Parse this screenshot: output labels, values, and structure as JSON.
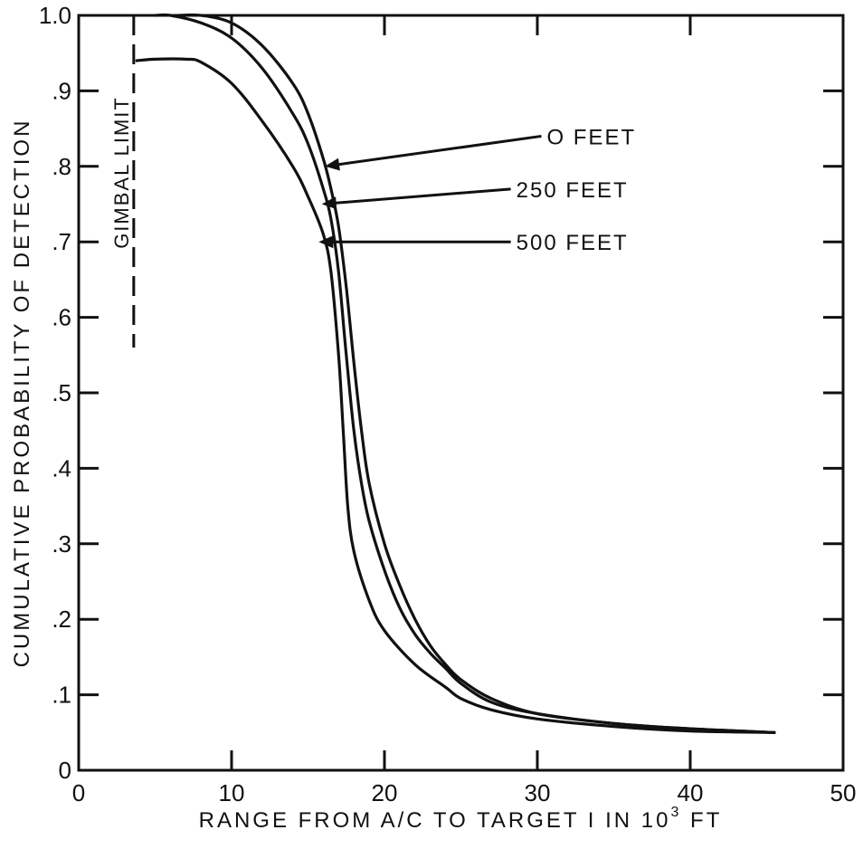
{
  "chart_data": {
    "type": "line",
    "title": "",
    "xlabel": "RANGE FROM A/C TO TARGET I IN 10",
    "xlabel_superscript": "3",
    "xlabel_suffix": " FT",
    "ylabel": "CUMULATIVE PROBABILITY OF DETECTION",
    "xlim": [
      0,
      50
    ],
    "ylim": [
      0,
      1.0
    ],
    "x_ticks": [
      0,
      10,
      20,
      30,
      40,
      50
    ],
    "x_tick_labels": [
      "0",
      "10",
      "20",
      "30",
      "40",
      "50"
    ],
    "y_ticks": [
      0,
      0.1,
      0.2,
      0.3,
      0.4,
      0.5,
      0.6,
      0.7,
      0.8,
      0.9,
      1.0
    ],
    "y_tick_labels": [
      "0",
      ".1",
      ".2",
      ".3",
      ".4",
      ".5",
      ".6",
      ".7",
      ".8",
      ".9",
      "1.0"
    ],
    "grid": false,
    "series": [
      {
        "name": "0 FEET",
        "x": [
          6.5,
          8,
          10,
          12,
          14,
          15,
          16,
          16.5,
          17,
          17.5,
          18,
          18.5,
          19,
          20,
          21,
          22,
          23,
          24,
          25,
          27,
          30,
          35,
          40,
          45.5
        ],
        "y": [
          1.0,
          1.0,
          0.99,
          0.96,
          0.91,
          0.87,
          0.81,
          0.77,
          0.72,
          0.64,
          0.54,
          0.45,
          0.38,
          0.3,
          0.245,
          0.2,
          0.165,
          0.14,
          0.12,
          0.095,
          0.075,
          0.062,
          0.055,
          0.05
        ]
      },
      {
        "name": "250 FEET",
        "x": [
          5,
          6,
          8,
          10,
          12,
          14,
          15,
          16,
          16.5,
          17,
          17.5,
          18,
          18.5,
          19,
          20,
          21,
          22,
          23,
          24,
          25,
          27,
          30,
          35,
          40,
          45.5
        ],
        "y": [
          1.0,
          1.0,
          0.99,
          0.97,
          0.93,
          0.87,
          0.83,
          0.77,
          0.73,
          0.66,
          0.55,
          0.45,
          0.38,
          0.33,
          0.265,
          0.215,
          0.18,
          0.155,
          0.135,
          0.115,
          0.09,
          0.075,
          0.062,
          0.055,
          0.05
        ]
      },
      {
        "name": "500 FEET",
        "x": [
          3.8,
          5,
          7,
          8,
          10,
          12,
          14,
          15,
          16,
          16.5,
          17,
          17.3,
          17.6,
          18,
          19,
          20,
          22,
          24,
          25,
          27,
          30,
          35,
          40,
          45.5
        ],
        "y": [
          0.94,
          0.942,
          0.942,
          0.938,
          0.91,
          0.86,
          0.8,
          0.76,
          0.71,
          0.66,
          0.55,
          0.45,
          0.35,
          0.29,
          0.225,
          0.185,
          0.14,
          0.11,
          0.095,
          0.08,
          0.068,
          0.058,
          0.052,
          0.05
        ]
      }
    ],
    "annotations": [
      {
        "text": "O FEET",
        "series": "0 FEET",
        "point_x": 16.1,
        "point_y": 0.8,
        "text_x": 30.5,
        "text_y": 0.84
      },
      {
        "text": "250 FEET",
        "series": "250 FEET",
        "point_x": 15.9,
        "point_y": 0.75,
        "text_x": 28.5,
        "text_y": 0.77
      },
      {
        "text": "500 FEET",
        "series": "500 FEET",
        "point_x": 15.7,
        "point_y": 0.7,
        "text_x": 28.5,
        "text_y": 0.7
      }
    ],
    "reference_line": {
      "label": "GIMBAL LIMIT",
      "x": 3.6,
      "y_from": 0.56,
      "y_to": 1.0,
      "style": "dashed"
    }
  }
}
